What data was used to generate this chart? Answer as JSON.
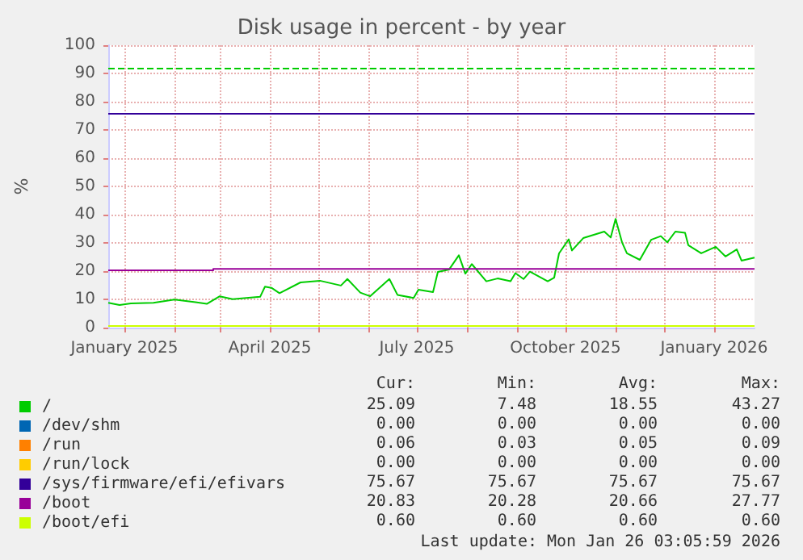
{
  "chart_data": {
    "type": "line",
    "title": "Disk usage in percent - by year",
    "ylabel": "%",
    "xlim": [
      "2024-12-22",
      "2026-01-26"
    ],
    "ylim": [
      0,
      100
    ],
    "yticks": [
      0,
      10,
      20,
      30,
      40,
      50,
      60,
      70,
      80,
      90,
      100
    ],
    "xticks": [
      {
        "value": "2025-01-01",
        "label": "January 2025"
      },
      {
        "value": "2025-02-01",
        "label": null
      },
      {
        "value": "2025-03-01",
        "label": null
      },
      {
        "value": "2025-04-01",
        "label": "April 2025"
      },
      {
        "value": "2025-05-01",
        "label": null
      },
      {
        "value": "2025-06-01",
        "label": null
      },
      {
        "value": "2025-07-01",
        "label": "July 2025"
      },
      {
        "value": "2025-08-01",
        "label": null
      },
      {
        "value": "2025-09-01",
        "label": null
      },
      {
        "value": "2025-10-01",
        "label": "October 2025"
      },
      {
        "value": "2025-11-01",
        "label": null
      },
      {
        "value": "2025-12-01",
        "label": null
      },
      {
        "value": "2026-01-01",
        "label": "January 2026"
      }
    ],
    "grid": true,
    "legend": "bottom",
    "marker": "none",
    "series": [
      {
        "name": "/",
        "color": "#00cc00",
        "x": [
          "2024-12-22",
          "2024-12-29",
          "2025-01-05",
          "2025-01-19",
          "2025-02-01",
          "2025-02-14",
          "2025-02-21",
          "2025-03-01",
          "2025-03-09",
          "2025-03-26",
          "2025-03-29",
          "2025-04-02",
          "2025-04-07",
          "2025-04-20",
          "2025-05-02",
          "2025-05-15",
          "2025-05-19",
          "2025-05-27",
          "2025-06-02",
          "2025-06-14",
          "2025-06-19",
          "2025-06-29",
          "2025-07-02",
          "2025-07-11",
          "2025-07-14",
          "2025-07-21",
          "2025-07-27",
          "2025-07-31",
          "2025-08-04",
          "2025-08-13",
          "2025-08-20",
          "2025-08-28",
          "2025-08-31",
          "2025-09-05",
          "2025-09-09",
          "2025-09-20",
          "2025-09-24",
          "2025-09-27",
          "2025-10-03",
          "2025-10-05",
          "2025-10-12",
          "2025-10-25",
          "2025-10-29",
          "2025-11-01",
          "2025-11-05",
          "2025-11-08",
          "2025-11-16",
          "2025-11-23",
          "2025-11-29",
          "2025-12-03",
          "2025-12-08",
          "2025-12-14",
          "2025-12-16",
          "2025-12-24",
          "2026-01-02",
          "2026-01-08",
          "2026-01-15",
          "2026-01-18",
          "2026-01-26"
        ],
        "values": [
          8.8,
          8.0,
          8.6,
          8.8,
          9.9,
          9.0,
          8.4,
          11.1,
          10.1,
          10.9,
          14.5,
          14.1,
          12.2,
          16.0,
          16.6,
          14.9,
          17.2,
          12.4,
          11.1,
          17.2,
          11.6,
          10.5,
          13.4,
          12.6,
          19.7,
          20.6,
          25.6,
          19.1,
          22.5,
          16.4,
          17.4,
          16.4,
          19.3,
          17.2,
          19.8,
          16.4,
          17.7,
          26.3,
          31.3,
          27.3,
          31.7,
          34.0,
          31.9,
          38.5,
          30.2,
          26.3,
          24.0,
          31.1,
          32.4,
          30.2,
          34.0,
          33.6,
          29.2,
          26.3,
          28.6,
          25.2,
          27.7,
          23.7,
          24.8
        ]
      },
      {
        "name": "/dev/shm",
        "color": "#0066b3"
      },
      {
        "name": "/run",
        "color": "#ff8000"
      },
      {
        "name": "/run/lock",
        "color": "#ffcc00"
      },
      {
        "name": "/sys/firmware/efi/efivars",
        "color": "#330099",
        "x": [
          "2024-12-22",
          "2026-01-26"
        ],
        "values": [
          75.7,
          75.7
        ]
      },
      {
        "name": "/boot",
        "color": "#990099",
        "x": [
          "2024-12-22",
          "2025-02-25",
          "2025-02-25",
          "2026-01-26"
        ],
        "values": [
          20.3,
          20.3,
          20.8,
          20.8
        ]
      },
      {
        "name": "/boot/efi",
        "color": "#ccff00",
        "x": [
          "2024-12-22",
          "2026-01-26"
        ],
        "values": [
          0.6,
          0.6
        ]
      }
    ],
    "ref_lines": [
      {
        "axis": "y",
        "value": 92,
        "color": "#00cc00",
        "line_style": "dashed"
      }
    ],
    "annotations": [
      "Cur:",
      "Min:",
      "Avg:",
      "Max:",
      "25.09",
      "7.48",
      "18.55",
      "43.27",
      "0.00",
      "0.00",
      "0.00",
      "0.00",
      "0.06",
      "0.03",
      "0.05",
      "0.09",
      "0.00",
      "0.00",
      "0.00",
      "0.00",
      "75.67",
      "75.67",
      "75.67",
      "75.67",
      "20.83",
      "20.28",
      "20.66",
      "27.77",
      "0.60",
      "0.60",
      "0.60",
      "0.60",
      "Last update: Mon Jan 26 03:05:59 2026"
    ]
  }
}
